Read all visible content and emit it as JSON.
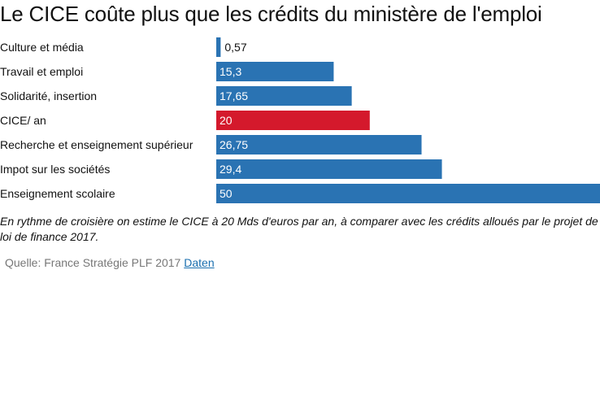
{
  "title": "Le CICE coûte plus que les crédits du ministère de l'emploi",
  "caption": "En rythme de croisière on estime le CICE à 20 Mds d'euros par an, à comparer avec les crédits alloués par le projet de loi de finance 2017.",
  "source": {
    "prefix": "Quelle:",
    "text": "France Stratégie PLF 2017",
    "link_label": "Daten"
  },
  "colors": {
    "bar": "#2a73b3",
    "highlight": "#d4192c"
  },
  "chart_data": {
    "type": "bar",
    "orientation": "horizontal",
    "categories": [
      "Culture et média",
      "Travail et emploi",
      "Solidarité, insertion",
      "CICE/ an",
      "Recherche et enseignement supérieur",
      "Impot sur les sociétés",
      "Enseignement scolaire"
    ],
    "values": [
      0.57,
      15.3,
      17.65,
      20,
      26.75,
      29.4,
      50
    ],
    "value_labels": [
      "0,57",
      "15,3",
      "17,65",
      "20",
      "26,75",
      "29,4",
      "50"
    ],
    "highlight_category": "CICE/ an",
    "xlim": [
      0,
      50
    ],
    "grid": false
  }
}
